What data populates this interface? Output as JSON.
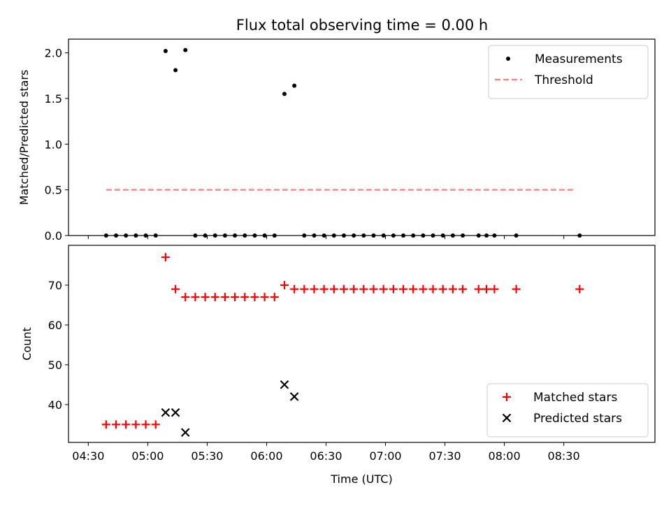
{
  "title": "Flux total observing time = 0.00 h",
  "chart_data": [
    {
      "type": "scatter",
      "ylabel": "Matched/Predicted stars",
      "xlabel": "",
      "xlim_minutes": [
        260,
        556
      ],
      "ylim": [
        0,
        2.15
      ],
      "x_ticks": [
        "04:30",
        "05:00",
        "05:30",
        "06:00",
        "06:30",
        "07:00",
        "07:30",
        "08:00",
        "08:30"
      ],
      "y_ticks": [
        0.0,
        0.5,
        1.0,
        1.5,
        2.0
      ],
      "y_tick_labels": [
        "0.0",
        "0.5",
        "1.0",
        "1.5",
        "2.0"
      ],
      "legend": "top-right",
      "series": [
        {
          "name": "Measurements",
          "color": "#000000",
          "marker": "dot",
          "x": [
            "04:39",
            "04:44",
            "04:49",
            "04:54",
            "04:59",
            "05:04",
            "05:09",
            "05:14",
            "05:19",
            "05:24",
            "05:29",
            "05:34",
            "05:39",
            "05:44",
            "05:49",
            "05:54",
            "05:59",
            "06:04",
            "06:09",
            "06:14",
            "06:19",
            "06:24",
            "06:29",
            "06:34",
            "06:39",
            "06:44",
            "06:49",
            "06:54",
            "06:59",
            "07:04",
            "07:09",
            "07:14",
            "07:19",
            "07:24",
            "07:29",
            "07:34",
            "07:39",
            "07:47",
            "07:51",
            "07:55",
            "08:06",
            "08:38"
          ],
          "y": [
            0,
            0,
            0,
            0,
            0,
            0,
            2.02,
            1.81,
            2.03,
            0,
            0,
            0,
            0,
            0,
            0,
            0,
            0,
            0,
            1.55,
            1.64,
            0,
            0,
            0,
            0,
            0,
            0,
            0,
            0,
            0,
            0,
            0,
            0,
            0,
            0,
            0,
            0,
            0,
            0,
            0,
            0,
            0,
            0
          ]
        },
        {
          "name": "Threshold",
          "color": "#ff7f7f",
          "style": "dashed",
          "x": [
            "04:39",
            "08:36"
          ],
          "y": [
            0.5,
            0.5
          ]
        }
      ]
    },
    {
      "type": "scatter",
      "ylabel": "Count",
      "xlabel": "Time (UTC)",
      "xlim_minutes": [
        260,
        556
      ],
      "ylim": [
        30.5,
        80
      ],
      "x_ticks": [
        "04:30",
        "05:00",
        "05:30",
        "06:00",
        "06:30",
        "07:00",
        "07:30",
        "08:00",
        "08:30"
      ],
      "y_ticks": [
        40,
        50,
        60,
        70
      ],
      "y_tick_labels": [
        "40",
        "50",
        "60",
        "70"
      ],
      "legend": "bottom-right",
      "series": [
        {
          "name": "Matched stars",
          "color": "#ff0000",
          "marker": "plus",
          "x": [
            "04:39",
            "04:44",
            "04:49",
            "04:54",
            "04:59",
            "05:04",
            "05:09",
            "05:14",
            "05:19",
            "05:24",
            "05:29",
            "05:34",
            "05:39",
            "05:44",
            "05:49",
            "05:54",
            "05:59",
            "06:04",
            "06:09",
            "06:14",
            "06:19",
            "06:24",
            "06:29",
            "06:34",
            "06:39",
            "06:44",
            "06:49",
            "06:54",
            "06:59",
            "07:04",
            "07:09",
            "07:14",
            "07:19",
            "07:24",
            "07:29",
            "07:34",
            "07:39",
            "07:47",
            "07:51",
            "07:55",
            "08:06",
            "08:38"
          ],
          "y": [
            35,
            35,
            35,
            35,
            35,
            35,
            77,
            69,
            67,
            67,
            67,
            67,
            67,
            67,
            67,
            67,
            67,
            67,
            70,
            69,
            69,
            69,
            69,
            69,
            69,
            69,
            69,
            69,
            69,
            69,
            69,
            69,
            69,
            69,
            69,
            69,
            69,
            69,
            69,
            69,
            69,
            69
          ]
        },
        {
          "name": "Predicted stars",
          "color": "#000000",
          "marker": "x",
          "x": [
            "05:09",
            "05:14",
            "05:19",
            "06:09",
            "06:14"
          ],
          "y": [
            38,
            38,
            33,
            45,
            42
          ]
        }
      ]
    }
  ]
}
